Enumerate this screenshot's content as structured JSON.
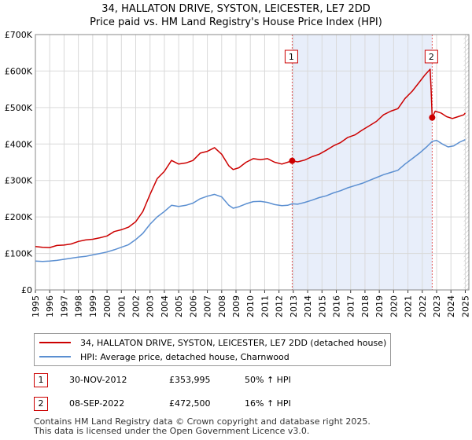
{
  "chart_data": {
    "type": "line",
    "title": "34, HALLATON DRIVE, SYSTON, LEICESTER, LE7 2DD",
    "subtitle": "Price paid vs. HM Land Registry's House Price Index (HPI)",
    "xlim": [
      1995,
      2025.25
    ],
    "ylim": [
      0,
      700000
    ],
    "x_ticks": [
      1995,
      1996,
      1997,
      1998,
      1999,
      2000,
      2001,
      2002,
      2003,
      2004,
      2005,
      2006,
      2007,
      2008,
      2009,
      2010,
      2011,
      2012,
      2013,
      2014,
      2015,
      2016,
      2017,
      2018,
      2019,
      2020,
      2021,
      2022,
      2023,
      2024,
      2025
    ],
    "y_ticks": [
      {
        "value": 0,
        "label": "£0"
      },
      {
        "value": 100000,
        "label": "£100K"
      },
      {
        "value": 200000,
        "label": "£200K"
      },
      {
        "value": 300000,
        "label": "£300K"
      },
      {
        "value": 400000,
        "label": "£400K"
      },
      {
        "value": 500000,
        "label": "£500K"
      },
      {
        "value": 600000,
        "label": "£600K"
      },
      {
        "value": 700000,
        "label": "£700K"
      }
    ],
    "grid": true,
    "shaded_region": {
      "from": 2012.92,
      "to": 2022.69,
      "color": "#e8eefa"
    },
    "hatch_from": 2024.9,
    "series": [
      {
        "name": "34, HALLATON DRIVE, SYSTON, LEICESTER, LE7 2DD (detached house)",
        "color": "#cc0000",
        "points": [
          [
            1995.0,
            119000
          ],
          [
            1995.5,
            117000
          ],
          [
            1996.0,
            116000
          ],
          [
            1996.5,
            122000
          ],
          [
            1997.0,
            123000
          ],
          [
            1997.5,
            126000
          ],
          [
            1998.0,
            133000
          ],
          [
            1998.5,
            137000
          ],
          [
            1999.0,
            139000
          ],
          [
            1999.5,
            143000
          ],
          [
            2000.0,
            148000
          ],
          [
            2000.5,
            160000
          ],
          [
            2001.0,
            165000
          ],
          [
            2001.5,
            172000
          ],
          [
            2002.0,
            187000
          ],
          [
            2002.5,
            215000
          ],
          [
            2003.0,
            262000
          ],
          [
            2003.5,
            305000
          ],
          [
            2004.0,
            325000
          ],
          [
            2004.5,
            355000
          ],
          [
            2005.0,
            345000
          ],
          [
            2005.5,
            348000
          ],
          [
            2006.0,
            355000
          ],
          [
            2006.5,
            375000
          ],
          [
            2007.0,
            380000
          ],
          [
            2007.5,
            390000
          ],
          [
            2008.0,
            372000
          ],
          [
            2008.5,
            340000
          ],
          [
            2008.8,
            330000
          ],
          [
            2009.2,
            335000
          ],
          [
            2009.7,
            350000
          ],
          [
            2010.2,
            360000
          ],
          [
            2010.7,
            357000
          ],
          [
            2011.2,
            360000
          ],
          [
            2011.7,
            350000
          ],
          [
            2012.2,
            345000
          ],
          [
            2012.6,
            350000
          ],
          [
            2012.92,
            353995
          ],
          [
            2013.3,
            351000
          ],
          [
            2013.8,
            356000
          ],
          [
            2014.3,
            365000
          ],
          [
            2014.8,
            372000
          ],
          [
            2015.3,
            383000
          ],
          [
            2015.8,
            395000
          ],
          [
            2016.3,
            404000
          ],
          [
            2016.8,
            418000
          ],
          [
            2017.3,
            425000
          ],
          [
            2017.8,
            438000
          ],
          [
            2018.3,
            450000
          ],
          [
            2018.8,
            462000
          ],
          [
            2019.3,
            480000
          ],
          [
            2019.8,
            490000
          ],
          [
            2020.3,
            497000
          ],
          [
            2020.8,
            525000
          ],
          [
            2021.3,
            545000
          ],
          [
            2021.8,
            570000
          ],
          [
            2022.2,
            590000
          ],
          [
            2022.55,
            605000
          ],
          [
            2022.62,
            545000
          ],
          [
            2022.69,
            472500
          ],
          [
            2022.9,
            490000
          ],
          [
            2023.3,
            485000
          ],
          [
            2023.7,
            475000
          ],
          [
            2024.1,
            470000
          ],
          [
            2024.5,
            475000
          ],
          [
            2024.9,
            480000
          ],
          [
            2025.0,
            485000
          ]
        ]
      },
      {
        "name": "HPI: Average price, detached house, Charnwood",
        "color": "#5b8fd1",
        "points": [
          [
            1995.0,
            79000
          ],
          [
            1995.5,
            78000
          ],
          [
            1996.0,
            79000
          ],
          [
            1996.5,
            81000
          ],
          [
            1997.0,
            84000
          ],
          [
            1997.5,
            87000
          ],
          [
            1998.0,
            90000
          ],
          [
            1998.5,
            92000
          ],
          [
            1999.0,
            96000
          ],
          [
            1999.5,
            100000
          ],
          [
            2000.0,
            104000
          ],
          [
            2000.5,
            110000
          ],
          [
            2001.0,
            117000
          ],
          [
            2001.5,
            124000
          ],
          [
            2002.0,
            138000
          ],
          [
            2002.5,
            155000
          ],
          [
            2003.0,
            180000
          ],
          [
            2003.5,
            200000
          ],
          [
            2004.0,
            215000
          ],
          [
            2004.5,
            232000
          ],
          [
            2005.0,
            229000
          ],
          [
            2005.5,
            232000
          ],
          [
            2006.0,
            238000
          ],
          [
            2006.5,
            250000
          ],
          [
            2007.0,
            257000
          ],
          [
            2007.5,
            262000
          ],
          [
            2008.0,
            255000
          ],
          [
            2008.5,
            232000
          ],
          [
            2008.8,
            224000
          ],
          [
            2009.2,
            228000
          ],
          [
            2009.7,
            236000
          ],
          [
            2010.2,
            242000
          ],
          [
            2010.7,
            243000
          ],
          [
            2011.2,
            240000
          ],
          [
            2011.7,
            234000
          ],
          [
            2012.2,
            231000
          ],
          [
            2012.6,
            232000
          ],
          [
            2012.92,
            236000
          ],
          [
            2013.3,
            235000
          ],
          [
            2013.8,
            240000
          ],
          [
            2014.3,
            246000
          ],
          [
            2014.8,
            253000
          ],
          [
            2015.3,
            258000
          ],
          [
            2015.8,
            266000
          ],
          [
            2016.3,
            272000
          ],
          [
            2016.8,
            280000
          ],
          [
            2017.3,
            286000
          ],
          [
            2017.8,
            292000
          ],
          [
            2018.3,
            300000
          ],
          [
            2018.8,
            308000
          ],
          [
            2019.3,
            316000
          ],
          [
            2019.8,
            322000
          ],
          [
            2020.3,
            328000
          ],
          [
            2020.8,
            345000
          ],
          [
            2021.3,
            360000
          ],
          [
            2021.8,
            375000
          ],
          [
            2022.3,
            392000
          ],
          [
            2022.69,
            407000
          ],
          [
            2023.0,
            410000
          ],
          [
            2023.4,
            400000
          ],
          [
            2023.8,
            392000
          ],
          [
            2024.2,
            395000
          ],
          [
            2024.6,
            405000
          ],
          [
            2025.0,
            412000
          ]
        ]
      }
    ],
    "markers": [
      {
        "label": "1",
        "x": 2012.92,
        "y": 353995
      },
      {
        "label": "2",
        "x": 2022.69,
        "y": 472500
      }
    ]
  },
  "legend": {
    "entries": [
      {
        "label": "34, HALLATON DRIVE, SYSTON, LEICESTER, LE7 2DD (detached house)",
        "color": "#cc0000"
      },
      {
        "label": "HPI: Average price, detached house, Charnwood",
        "color": "#5b8fd1"
      }
    ]
  },
  "transactions": [
    {
      "num": "1",
      "date": "30-NOV-2012",
      "price": "£353,995",
      "hpi": "50% ↑ HPI"
    },
    {
      "num": "2",
      "date": "08-SEP-2022",
      "price": "£472,500",
      "hpi": "16% ↑ HPI"
    }
  ],
  "footer": {
    "line1": "Contains HM Land Registry data © Crown copyright and database right 2025.",
    "line2": "This data is licensed under the Open Government Licence v3.0."
  }
}
